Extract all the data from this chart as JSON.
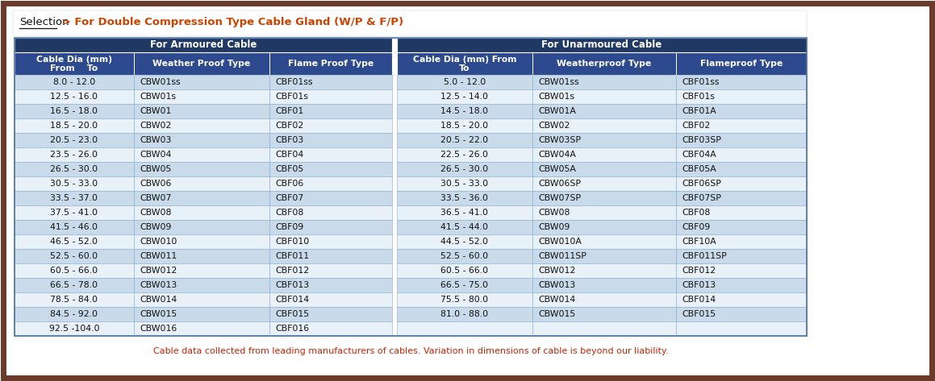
{
  "title_selection": "Selection",
  "title_rest": " > For Double Compression Type Cable Gland (W/P & F/P)",
  "footer": "Cable data collected from leading manufacturers of cables. Variation in dimensions of cable is beyond our liability.",
  "header1_armoured": "For Armoured Cable",
  "header1_unarmoured": "For Unarmoured Cable",
  "col_headers_armoured": [
    "Cable Dia (mm)\nFrom    To",
    "Weather Proof Type",
    "Flame Proof Type"
  ],
  "col_headers_unarmoured": [
    "Cable Dia (mm) From\nTo",
    "Weatherproof Type",
    "Flameproof Type"
  ],
  "armoured_data": [
    [
      "8.0 - 12.0",
      "CBW01ss",
      "CBF01ss"
    ],
    [
      "12.5 - 16.0",
      "CBW01s",
      "CBF01s"
    ],
    [
      "16.5 - 18.0",
      "CBW01",
      "CBF01"
    ],
    [
      "18.5 - 20.0",
      "CBW02",
      "CBF02"
    ],
    [
      "20.5 - 23.0",
      "CBW03",
      "CBF03"
    ],
    [
      "23.5 - 26.0",
      "CBW04",
      "CBF04"
    ],
    [
      "26.5 - 30.0",
      "CBW05",
      "CBF05"
    ],
    [
      "30.5 - 33.0",
      "CBW06",
      "CBF06"
    ],
    [
      "33.5 - 37.0",
      "CBW07",
      "CBF07"
    ],
    [
      "37.5 - 41.0",
      "CBW08",
      "CBF08"
    ],
    [
      "41.5 - 46.0",
      "CBW09",
      "CBF09"
    ],
    [
      "46.5 - 52.0",
      "CBW010",
      "CBF010"
    ],
    [
      "52.5 - 60.0",
      "CBW011",
      "CBF011"
    ],
    [
      "60.5 - 66.0",
      "CBW012",
      "CBF012"
    ],
    [
      "66.5 - 78.0",
      "CBW013",
      "CBF013"
    ],
    [
      "78.5 - 84.0",
      "CBW014",
      "CBF014"
    ],
    [
      "84.5 - 92.0",
      "CBW015",
      "CBF015"
    ],
    [
      "92.5 -104.0",
      "CBW016",
      "CBF016"
    ]
  ],
  "unarmoured_data": [
    [
      "5.0 - 12.0",
      "CBW01ss",
      "CBF01ss"
    ],
    [
      "12.5 - 14.0",
      "CBW01s",
      "CBF01s"
    ],
    [
      "14.5 - 18.0",
      "CBW01A",
      "CBF01A"
    ],
    [
      "18.5 - 20.0",
      "CBW02",
      "CBF02"
    ],
    [
      "20.5 - 22.0",
      "CBW03SP",
      "CBF03SP"
    ],
    [
      "22.5 - 26.0",
      "CBW04A",
      "CBF04A"
    ],
    [
      "26.5 - 30.0",
      "CBW05A",
      "CBF05A"
    ],
    [
      "30.5 - 33.0",
      "CBW06SP",
      "CBF06SP"
    ],
    [
      "33.5 - 36.0",
      "CBW07SP",
      "CBF07SP"
    ],
    [
      "36.5 - 41.0",
      "CBW08",
      "CBF08"
    ],
    [
      "41.5 - 44.0",
      "CBW09",
      "CBF09"
    ],
    [
      "44.5 - 52.0",
      "CBW010A",
      "CBF10A"
    ],
    [
      "52.5 - 60.0",
      "CBW011SP",
      "CBF011SP"
    ],
    [
      "60.5 - 66.0",
      "CBW012",
      "CBF012"
    ],
    [
      "66.5 - 75.0",
      "CBW013",
      "CBF013"
    ],
    [
      "75.5 - 80.0",
      "CBW014",
      "CBF014"
    ],
    [
      "81.0 - 88.0",
      "CBW015",
      "CBF015"
    ],
    [
      "",
      "",
      ""
    ]
  ],
  "header_dark_color": "#1F3864",
  "header_sub_color": "#2E4A8F",
  "row_color_light": "#C9DAEA",
  "row_color_white": "#E8F1F8",
  "outer_border_color": "#6B3A2A",
  "footer_color": "#CC2200"
}
